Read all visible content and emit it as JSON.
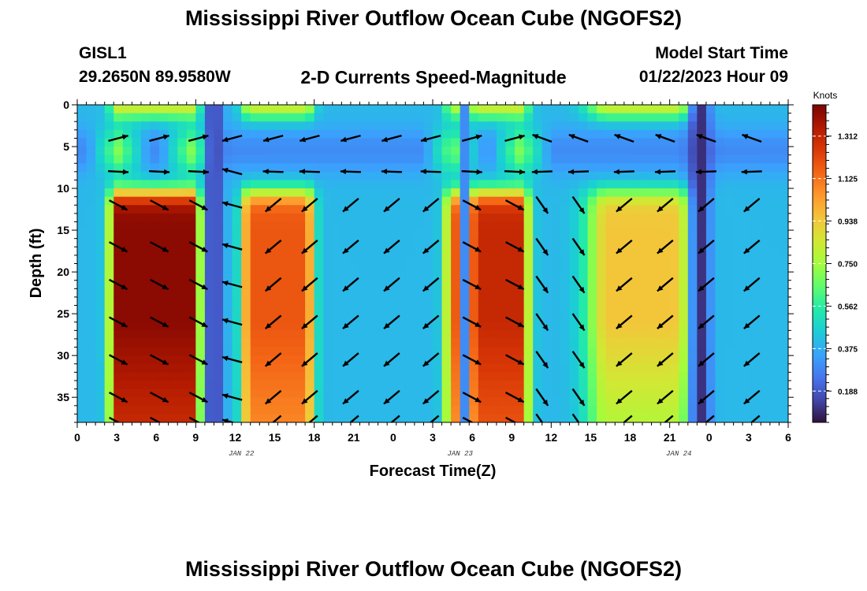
{
  "page": {
    "title": "Mississippi River Outflow Ocean Cube (NGOFS2)",
    "station": "GISL1",
    "location": "29.2650N  89.9580W",
    "subtitle": "2-D Currents Speed-Magnitude",
    "model_start_label": "Model Start Time",
    "model_start_value": "01/22/2023 Hour 09",
    "footer_title": "Mississippi River Outflow Ocean Cube (NGOFS2)"
  },
  "chart_data": {
    "type": "heatmap",
    "xlabel": "Forecast Time(Z)",
    "ylabel": "Depth (ft)",
    "x_tick_labels": [
      "0",
      "3",
      "6",
      "9",
      "12",
      "15",
      "18",
      "21",
      "0",
      "3",
      "6",
      "9",
      "12",
      "15",
      "18",
      "21",
      "0",
      "3",
      "6"
    ],
    "x_dates": [
      {
        "label": "JAN 22",
        "hour": 18
      },
      {
        "label": "JAN 23",
        "hour": 42
      },
      {
        "label": "JAN 24",
        "hour": 66
      }
    ],
    "x_range_hours": [
      0,
      78
    ],
    "y_tick_labels": [
      "0",
      "5",
      "10",
      "15",
      "20",
      "25",
      "30",
      "35"
    ],
    "y_range_ft": [
      0,
      38
    ],
    "y_inverted": true,
    "colorbar": {
      "title": "Knots",
      "range": [
        0.05,
        1.45
      ],
      "ticks": [
        "0.188",
        "0.375",
        "0.562",
        "0.750",
        "0.938",
        "1.125",
        "1.312"
      ],
      "colormap": "turbo"
    },
    "vectors": {
      "time_hours": [
        4.5,
        9,
        13.3,
        17,
        21.5,
        25.5,
        30,
        34.5,
        38.8,
        43.3,
        48,
        51,
        55,
        60,
        64.5,
        69,
        74
      ],
      "depths_ft": [
        4,
        8,
        12,
        17,
        21.5,
        26,
        30.5,
        35,
        38
      ]
    }
  }
}
